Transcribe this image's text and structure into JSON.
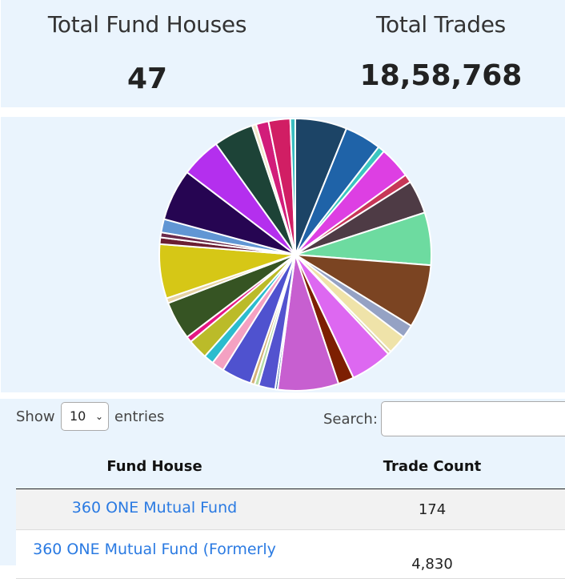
{
  "stats": {
    "fund_houses_label": "Total Fund Houses",
    "fund_houses_value": "47",
    "trades_label": "Total Trades",
    "trades_value": "18,58,768"
  },
  "chart_data": {
    "type": "pie",
    "slices": [
      {
        "value": 6.2,
        "color": "#1c4466"
      },
      {
        "value": 4.4,
        "color": "#1f63a8"
      },
      {
        "value": 0.8,
        "color": "#3bc6c0"
      },
      {
        "value": 3.8,
        "color": "#dd3fe3"
      },
      {
        "value": 1.0,
        "color": "#c73757"
      },
      {
        "value": 4.0,
        "color": "#4e3b45"
      },
      {
        "value": 6.3,
        "color": "#6ddba0"
      },
      {
        "value": 7.6,
        "color": "#7b4422"
      },
      {
        "value": 1.6,
        "color": "#95a2c4"
      },
      {
        "value": 2.3,
        "color": "#efe3a9"
      },
      {
        "value": 0.4,
        "color": "#d5c9a6"
      },
      {
        "value": 5.0,
        "color": "#dd68f1"
      },
      {
        "value": 1.9,
        "color": "#7d1f02"
      },
      {
        "value": 7.3,
        "color": "#c75fd0"
      },
      {
        "value": 0.3,
        "color": "#3b65a8"
      },
      {
        "value": 2.0,
        "color": "#5353cf"
      },
      {
        "value": 0.5,
        "color": "#b6dca6"
      },
      {
        "value": 0.5,
        "color": "#d4b278"
      },
      {
        "value": 3.6,
        "color": "#4f52cf"
      },
      {
        "value": 1.5,
        "color": "#f4a1c2"
      },
      {
        "value": 1.2,
        "color": "#2bbcce"
      },
      {
        "value": 2.4,
        "color": "#bbbb29"
      },
      {
        "value": 0.7,
        "color": "#e41683"
      },
      {
        "value": 4.6,
        "color": "#365423"
      },
      {
        "value": 0.6,
        "color": "#e6d3a3"
      },
      {
        "value": 6.5,
        "color": "#d6c716"
      },
      {
        "value": 0.8,
        "color": "#6b1f33"
      },
      {
        "value": 0.6,
        "color": "#6b2a4a"
      },
      {
        "value": 1.6,
        "color": "#6196d4"
      },
      {
        "value": 6.2,
        "color": "#260552"
      },
      {
        "value": 4.8,
        "color": "#b42fee"
      },
      {
        "value": 4.8,
        "color": "#1d4337"
      },
      {
        "value": 0.5,
        "color": "#f0e6c7"
      },
      {
        "value": 1.5,
        "color": "#d21d7a"
      },
      {
        "value": 2.6,
        "color": "#d11e64"
      },
      {
        "value": 0.6,
        "color": "#3abdc1"
      }
    ]
  },
  "table": {
    "show_label": "Show",
    "entries_value": "10",
    "entries_label": "entries",
    "search_label": "Search:",
    "search_value": "",
    "headers": {
      "fund_house": "Fund House",
      "trade_count": "Trade Count"
    },
    "rows": [
      {
        "fund_house": "360 ONE Mutual Fund",
        "trade_count": "174"
      },
      {
        "fund_house": "360 ONE Mutual Fund (Formerly",
        "trade_count": "4,830"
      }
    ]
  },
  "icons": {
    "select_chevron": "chevron-down-icon"
  }
}
